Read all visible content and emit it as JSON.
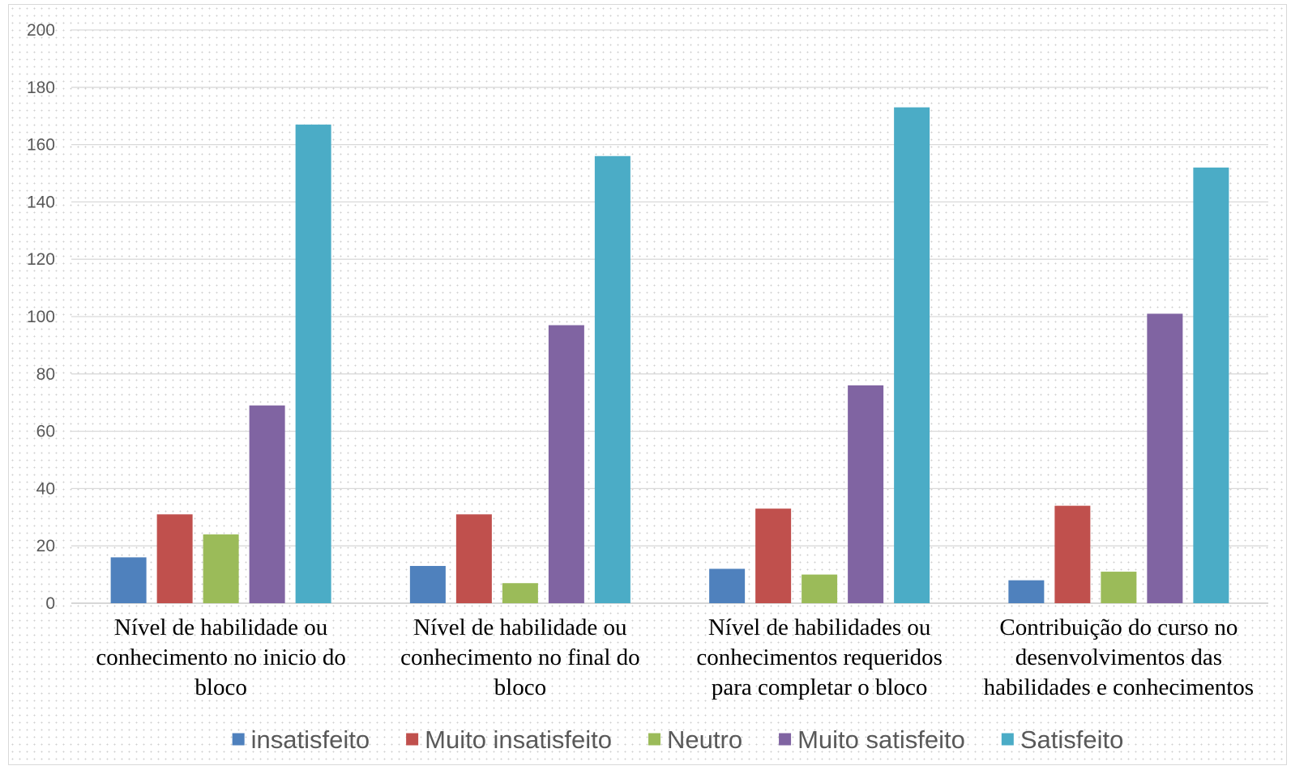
{
  "chart_data": {
    "type": "bar",
    "title": "",
    "xlabel": "",
    "ylabel": "",
    "ylim": [
      0,
      200
    ],
    "yticks": [
      0,
      20,
      40,
      60,
      80,
      100,
      120,
      140,
      160,
      180,
      200
    ],
    "grid": true,
    "legend_position": "bottom",
    "categories": [
      [
        "Nível de habilidade ou",
        "conhecimento no inicio do",
        "bloco"
      ],
      [
        "Nível de habilidade ou",
        "conhecimento no final do",
        "bloco"
      ],
      [
        "Nível de habilidades ou",
        "conhecimentos requeridos",
        "para completar o bloco"
      ],
      [
        "Contribuição do curso no",
        "desenvolvimentos das",
        "habilidades e conhecimentos"
      ]
    ],
    "series": [
      {
        "name": "insatisfeito",
        "color": "#4f81bd",
        "values": [
          16,
          13,
          12,
          8
        ]
      },
      {
        "name": "Muito insatisfeito",
        "color": "#c0504d",
        "values": [
          31,
          31,
          33,
          34
        ]
      },
      {
        "name": "Neutro",
        "color": "#9bbb59",
        "values": [
          24,
          7,
          10,
          11
        ]
      },
      {
        "name": "Muito satisfeito",
        "color": "#8064a2",
        "values": [
          69,
          97,
          76,
          101
        ]
      },
      {
        "name": "Satisfeito",
        "color": "#4bacc6",
        "values": [
          167,
          156,
          173,
          152
        ]
      }
    ]
  }
}
